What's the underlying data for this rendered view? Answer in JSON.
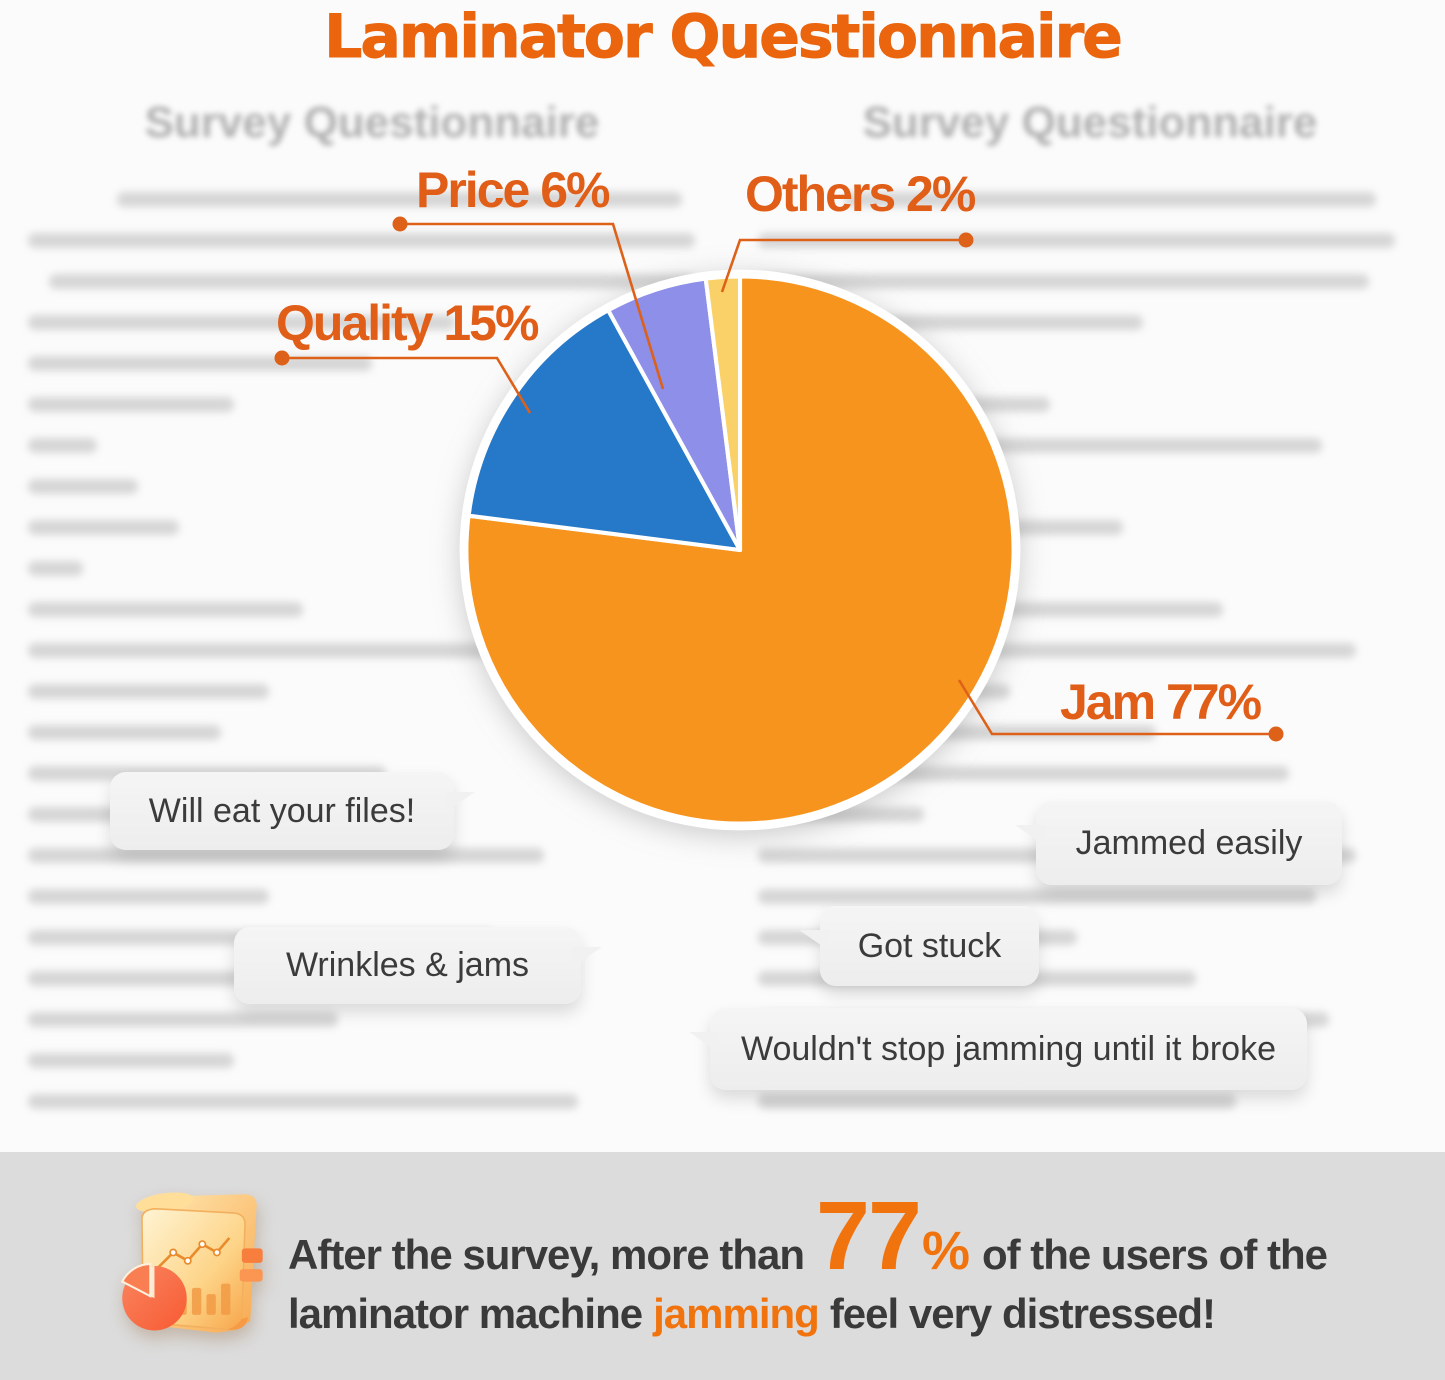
{
  "title": "Laminator Questionnaire",
  "colors": {
    "title_orange": "#ea650d",
    "label_orange": "#e05e17",
    "leader_line": "#dd6119",
    "pie_jam": "#F7941E",
    "pie_quality": "#2679C8",
    "pie_price": "#8D8FE8",
    "pie_others": "#FAD169",
    "bubble_bg": "#f1f1f1",
    "bubble_text": "#3b3b3b",
    "footer_band": "#dcdcdc",
    "footer_text": "#3a3a3a",
    "footer_highlight": "#f0730e"
  },
  "chart_data": {
    "type": "pie",
    "title": "Laminator Questionnaire",
    "start_angle_deg": 0,
    "direction": "clockwise",
    "legend_position": "callouts",
    "slices": [
      {
        "label": "Jam",
        "value_pct": 77,
        "color": "#F7941E",
        "callout": "Jam 77%"
      },
      {
        "label": "Quality",
        "value_pct": 15,
        "color": "#2679C8",
        "callout": "Quality 15%"
      },
      {
        "label": "Price",
        "value_pct": 6,
        "color": "#8D8FE8",
        "callout": "Price 6%"
      },
      {
        "label": "Others",
        "value_pct": 2,
        "color": "#FAD169",
        "callout": "Others 2%"
      }
    ]
  },
  "background": {
    "left_doc_title": "Survey Questionnaire",
    "right_doc_title": "Survey Questionnaire"
  },
  "quotes": [
    "Will eat your files!",
    "Jammed easily",
    "Got stuck",
    "Wrinkles & jams",
    "Wouldn't stop jamming until it broke"
  ],
  "footer": {
    "line1_before": "After the survey, more than",
    "big_number": "77",
    "percent_sign": "%",
    "line1_after": "of the users of the",
    "line2_before": "laminator machine",
    "line2_highlight": "jamming",
    "line2_after": "feel very distressed!"
  }
}
